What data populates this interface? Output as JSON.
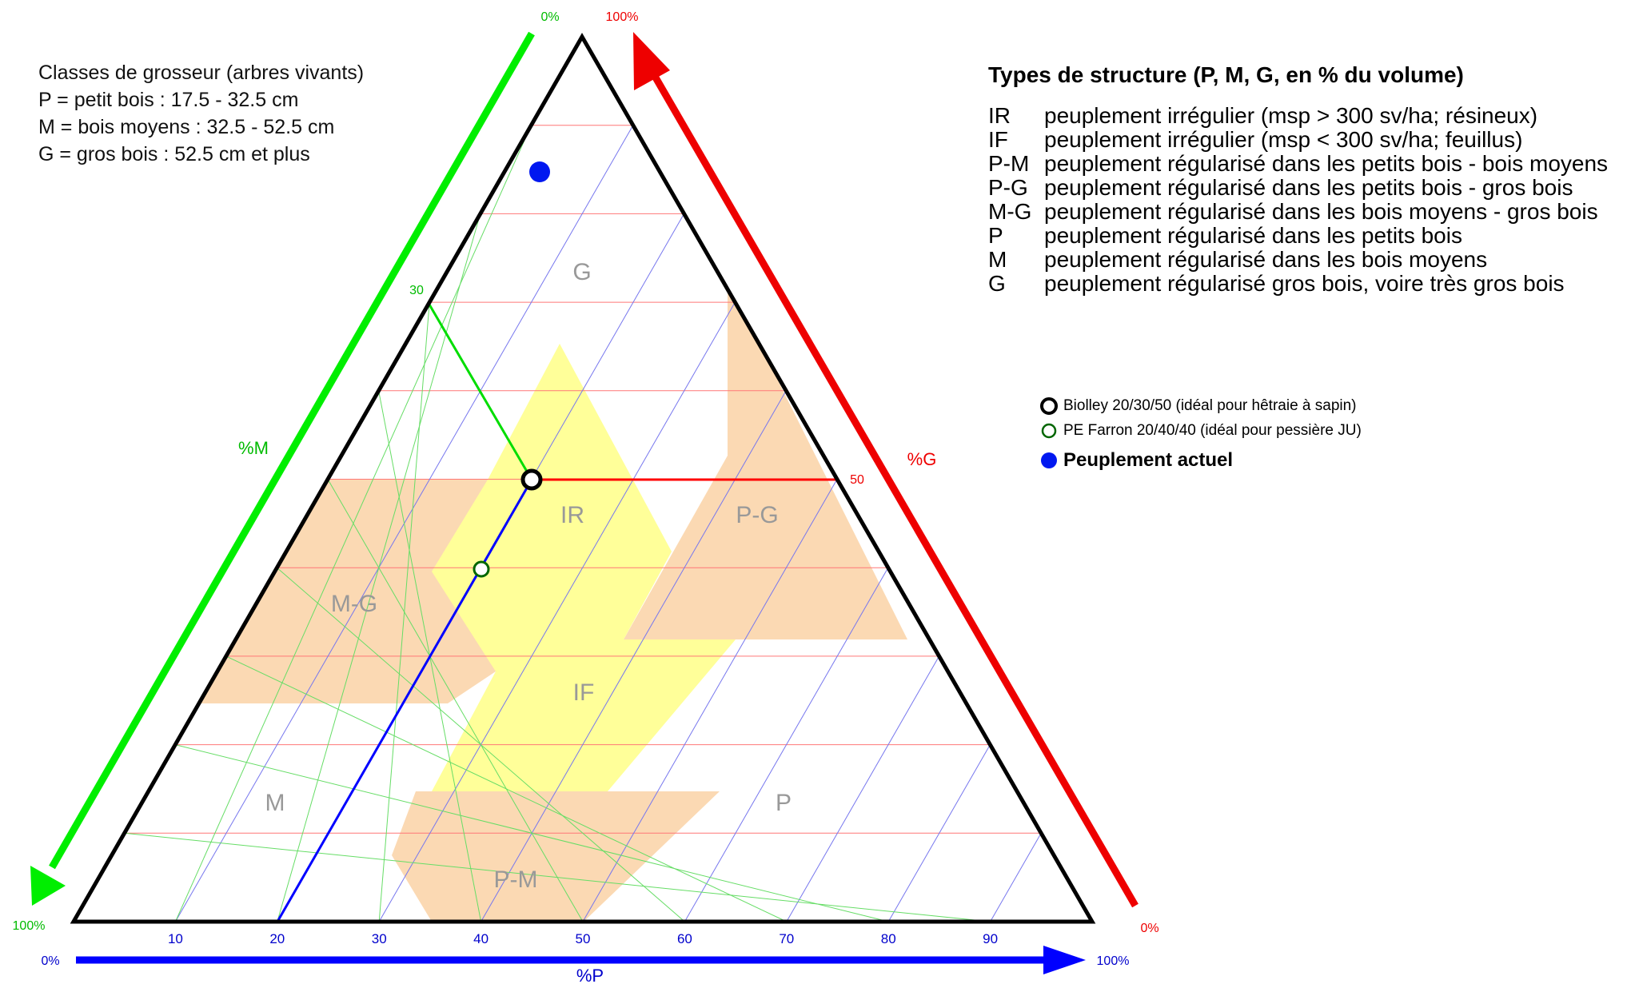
{
  "size_legend": {
    "title": "Classes de grosseur (arbres vivants)",
    "lines": [
      "P = petit bois : 17.5 - 32.5 cm",
      "M = bois moyens : 32.5 - 52.5 cm",
      "G = gros bois : 52.5 cm et plus"
    ]
  },
  "types_legend": {
    "title": "Types de structure (P, M, G, en % du volume)",
    "items": [
      {
        "code": "IR",
        "text": "peuplement irrégulier (msp > 300 sv/ha; résineux)"
      },
      {
        "code": "IF",
        "text": "peuplement irrégulier (msp < 300 sv/ha; feuillus)"
      },
      {
        "code": "P-M",
        "text": "peuplement régularisé dans les petits bois - bois moyens"
      },
      {
        "code": "P-G",
        "text": "peuplement régularisé dans les petits bois - gros bois"
      },
      {
        "code": "M-G",
        "text": "peuplement régularisé dans les bois moyens - gros bois"
      },
      {
        "code": "P",
        "text": "peuplement régularisé dans les petits bois"
      },
      {
        "code": "M",
        "text": "peuplement régularisé dans les bois moyens"
      },
      {
        "code": "G",
        "text": "peuplement régularisé gros bois, voire très gros bois"
      }
    ]
  },
  "marker_legend": {
    "biolley": "Biolley 20/30/50 (idéal pour hêtraie à sapin)",
    "farron": "PE Farron 20/40/40 (idéal pour pessière JU)",
    "actuel": "Peuplement actuel"
  },
  "axes": {
    "p": {
      "label": "%P",
      "start": "0%",
      "end": "100%",
      "ticks": [
        "10",
        "20",
        "30",
        "40",
        "50",
        "60",
        "70",
        "80",
        "90"
      ]
    },
    "m": {
      "label": "%M",
      "start": "0%",
      "end": "100%",
      "tick_30": "30"
    },
    "g": {
      "label": "%G",
      "start": "0%",
      "end": "100%",
      "tick_50": "50"
    }
  },
  "zone_labels": {
    "G": "G",
    "IR": "IR",
    "P-G": "P-G",
    "M-G": "M-G",
    "IF": "IF",
    "M": "M",
    "P": "P",
    "P-M": "P-M"
  },
  "colors": {
    "p_axis": "#0000ff",
    "m_axis": "#00dd00",
    "g_axis": "#ff0000",
    "zone_orange": "#fbd9b3",
    "zone_yellow": "#ffff99",
    "grid_p": "#7777ee",
    "grid_m": "#66dd66",
    "grid_g": "#ff7777",
    "actuel": "#0018f0"
  },
  "chart_data": {
    "type": "ternary",
    "components": [
      "P",
      "M",
      "G"
    ],
    "points": [
      {
        "name": "Biolley 20/30/50",
        "P": 20,
        "M": 30,
        "G": 50
      },
      {
        "name": "PE Farron 20/40/40",
        "P": 20,
        "M": 40,
        "G": 40
      },
      {
        "name": "Peuplement actuel",
        "P": 8,
        "M": 10,
        "G": 82
      }
    ]
  }
}
